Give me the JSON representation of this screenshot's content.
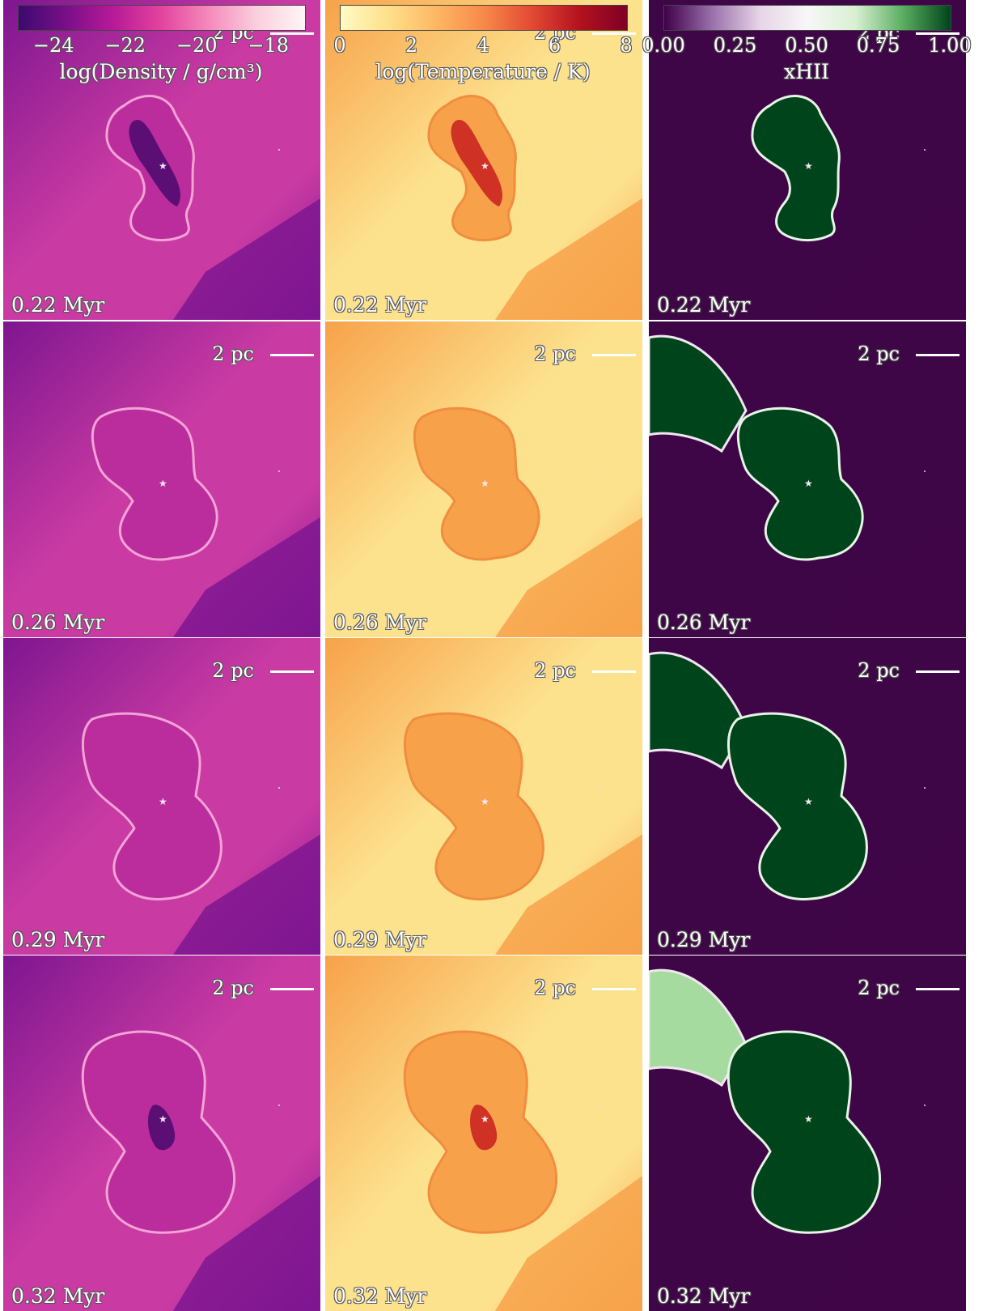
{
  "columns": [
    {
      "key": "density",
      "colorbar": {
        "title": "log(Density / g/cm³)",
        "ticks": [
          "−24",
          "−22",
          "−20",
          "−18"
        ],
        "tick_values": [
          -24,
          -22,
          -20,
          -18
        ],
        "range": [
          -25,
          -17
        ],
        "colors": [
          "#3b0a6e",
          "#7a0f88",
          "#b81a98",
          "#e3449e",
          "#f48bbd",
          "#fbd0de",
          "#fff5f5"
        ]
      },
      "background": "#c93aa3",
      "outer_color": "#7e1690",
      "bubble_fill": "#bb2d9d",
      "bubble_edge": "#f3a4d6",
      "core_color": "#4a0a6e"
    },
    {
      "key": "temperature",
      "colorbar": {
        "title": "log(Temperature / K)",
        "ticks": [
          "0",
          "2",
          "4",
          "6",
          "8"
        ],
        "tick_values": [
          0,
          2,
          4,
          6,
          8
        ],
        "range": [
          0,
          8
        ],
        "colors": [
          "#fffbc4",
          "#fee08b",
          "#fdb863",
          "#f6894a",
          "#e34a33",
          "#b3121e",
          "#7f0026"
        ]
      },
      "background": "#fde28e",
      "outer_color": "#f7a24a",
      "bubble_fill": "#f7a24a",
      "bubble_edge": "#f08d3e",
      "core_color": "#c81d1d"
    },
    {
      "key": "ionization",
      "colorbar": {
        "title": "xHII",
        "ticks": [
          "0.00",
          "0.25",
          "0.50",
          "0.75",
          "1.00"
        ],
        "tick_values": [
          0,
          0.25,
          0.5,
          0.75,
          1
        ],
        "range": [
          0,
          1
        ],
        "colors": [
          "#40004b",
          "#9970ab",
          "#e7d4e8",
          "#f7f7f7",
          "#d9f0d3",
          "#5aae61",
          "#00441b"
        ]
      },
      "background": "#3f0647",
      "outer_color": "#3f0647",
      "bubble_fill": "#00441b",
      "bubble_edge": "#e6f5e6",
      "core_color": "#00441b"
    }
  ],
  "rows": [
    {
      "time": "0.22 Myr",
      "scale": "2 pc"
    },
    {
      "time": "0.26 Myr",
      "scale": "2 pc"
    },
    {
      "time": "0.29 Myr",
      "scale": "2 pc"
    },
    {
      "time": "0.32 Myr",
      "scale": "2 pc"
    }
  ],
  "star_glyph": "★"
}
